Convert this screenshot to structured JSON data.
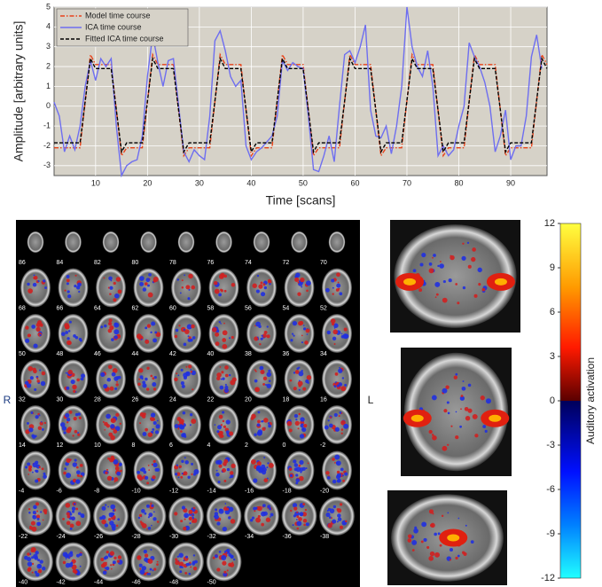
{
  "chart_data": [
    {
      "type": "line",
      "x_label": "Time [scans]",
      "y_label": "Amplitude [arbitrary units]",
      "xlim": [
        2,
        97
      ],
      "ylim": [
        -3.5,
        5
      ],
      "xticks": [
        10,
        20,
        30,
        40,
        50,
        60,
        70,
        80,
        90
      ],
      "yticks": [
        -3,
        -2,
        -1,
        0,
        1,
        2,
        3,
        4,
        5
      ],
      "grid": true,
      "legend": "upper left",
      "series": [
        {
          "name": "Model time course",
          "color": "#e8431a",
          "style": "dashdot",
          "x": [
            2,
            7,
            9,
            10,
            13,
            15,
            16,
            19,
            21,
            22,
            25,
            27,
            28,
            32,
            34,
            35,
            38,
            40,
            41,
            44,
            46,
            47,
            50,
            52,
            53,
            57,
            59,
            60,
            63,
            65,
            66,
            69,
            71,
            72,
            75,
            77,
            78,
            81,
            83,
            84,
            87,
            89,
            90,
            94,
            96,
            97
          ],
          "values": [
            -2.1,
            -2.1,
            2.6,
            2.1,
            2.1,
            -2.5,
            -2.1,
            -2.1,
            2.6,
            2.1,
            2.1,
            -2.5,
            -2.1,
            -2.1,
            2.6,
            2.1,
            2.1,
            -2.5,
            -2.1,
            -2.1,
            2.6,
            2.1,
            2.1,
            -2.5,
            -2.1,
            -2.1,
            2.6,
            2.1,
            2.1,
            -2.5,
            -2.1,
            -2.1,
            2.6,
            2.1,
            2.1,
            -2.5,
            -2.1,
            -2.1,
            2.6,
            2.1,
            2.1,
            -2.5,
            -2.1,
            -2.1,
            2.6,
            2.1
          ]
        },
        {
          "name": "ICA time course",
          "color": "#6e6ef0",
          "style": "solid",
          "x": [
            2,
            3,
            4,
            5,
            6,
            7,
            8,
            9,
            10,
            11,
            12,
            13,
            14,
            15,
            16,
            17,
            18,
            19,
            20,
            21,
            22,
            23,
            24,
            25,
            26,
            27,
            28,
            29,
            30,
            31,
            32,
            33,
            34,
            35,
            36,
            37,
            38,
            39,
            40,
            41,
            42,
            43,
            44,
            45,
            46,
            47,
            48,
            49,
            50,
            51,
            52,
            53,
            54,
            55,
            56,
            57,
            58,
            59,
            60,
            61,
            62,
            63,
            64,
            65,
            66,
            67,
            68,
            69,
            70,
            71,
            72,
            73,
            74,
            75,
            76,
            77,
            78,
            79,
            80,
            81,
            82,
            83,
            84,
            85,
            86,
            87,
            88,
            89,
            90,
            91,
            92,
            93,
            94,
            95,
            96
          ],
          "values": [
            0.2,
            -0.5,
            -2.3,
            -1.5,
            -2.2,
            -1.0,
            1.0,
            2.3,
            1.3,
            2.4,
            2.0,
            2.4,
            -1.0,
            -3.5,
            -3.0,
            -2.8,
            -2.7,
            -1.5,
            1.5,
            3.6,
            2.2,
            1.0,
            2.3,
            2.4,
            0.0,
            -2.3,
            -2.8,
            -2.2,
            -2.5,
            -2.7,
            -0.5,
            3.3,
            3.8,
            2.8,
            1.5,
            1.0,
            1.3,
            -2.0,
            -2.7,
            -2.3,
            -2.1,
            -1.8,
            -1.5,
            -0.5,
            2.3,
            1.8,
            2.2,
            2.0,
            1.9,
            -0.5,
            -3.2,
            -3.3,
            -2.5,
            -1.5,
            -2.8,
            0.0,
            2.6,
            2.8,
            2.2,
            3.0,
            4.1,
            -0.2,
            -1.5,
            -1.6,
            -1.0,
            -2.4,
            -1.0,
            1.0,
            5.0,
            3.0,
            2.0,
            1.5,
            2.8,
            1.0,
            -2.5,
            -2.0,
            -2.5,
            -2.2,
            -1.0,
            0.0,
            3.2,
            2.5,
            2.0,
            1.2,
            0.0,
            -2.3,
            -1.5,
            -0.2,
            -2.7,
            -2.0,
            -2.0,
            -0.5,
            2.5,
            3.6,
            1.9
          ]
        },
        {
          "name": "Fitted ICA time course",
          "color": "#000000",
          "style": "dashed",
          "x": [
            2,
            7,
            9,
            10,
            13,
            15,
            16,
            19,
            21,
            22,
            25,
            27,
            28,
            32,
            34,
            35,
            38,
            40,
            41,
            44,
            46,
            47,
            50,
            52,
            53,
            57,
            59,
            60,
            63,
            65,
            66,
            69,
            71,
            72,
            75,
            77,
            78,
            81,
            83,
            84,
            87,
            89,
            90,
            94,
            96,
            97
          ],
          "values": [
            -1.85,
            -1.85,
            2.4,
            1.9,
            1.9,
            -2.3,
            -1.85,
            -1.85,
            2.4,
            1.9,
            1.9,
            -2.3,
            -1.85,
            -1.85,
            2.4,
            1.9,
            1.9,
            -2.3,
            -1.85,
            -1.85,
            2.4,
            1.9,
            1.9,
            -2.3,
            -1.85,
            -1.85,
            2.4,
            1.9,
            1.9,
            -2.3,
            -1.85,
            -1.85,
            2.4,
            1.9,
            1.9,
            -2.3,
            -1.85,
            -1.85,
            2.4,
            1.9,
            1.9,
            -2.3,
            -1.85,
            -1.85,
            2.4,
            1.9
          ]
        }
      ]
    },
    {
      "type": "colorbar",
      "label": "Auditory activation",
      "ylim": [
        -12,
        12
      ],
      "yticks": [
        12,
        9,
        6,
        3,
        0,
        -3,
        -6,
        -9,
        -12
      ]
    }
  ],
  "montage": {
    "left_label": "R",
    "right_label": "L",
    "slices": [
      86,
      84,
      82,
      80,
      78,
      76,
      74,
      72,
      70,
      68,
      66,
      64,
      62,
      60,
      58,
      56,
      54,
      52,
      50,
      48,
      46,
      44,
      42,
      40,
      38,
      36,
      34,
      32,
      30,
      28,
      26,
      24,
      22,
      20,
      18,
      16,
      14,
      12,
      10,
      8,
      6,
      4,
      2,
      0,
      -2,
      -4,
      -6,
      -8,
      -10,
      -12,
      -14,
      -16,
      -18,
      -20,
      -22,
      -24,
      -26,
      -28,
      -30,
      -32,
      -34,
      -36,
      -38,
      -40,
      -42,
      -44,
      -46,
      -48,
      -50
    ]
  }
}
